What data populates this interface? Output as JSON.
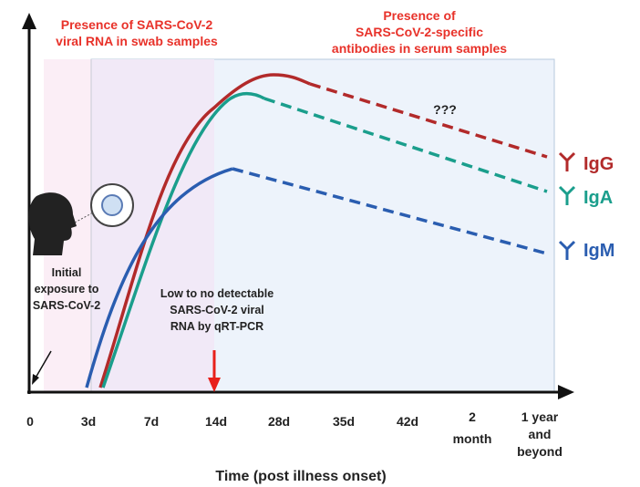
{
  "diagram": {
    "top_labels": [
      [
        "Presence of SARS-CoV-2",
        "viral RNA in swab samples"
      ],
      [
        "Presence of",
        "SARS-CoV-2-specific",
        "antibodies in serum samples"
      ]
    ],
    "unknown_label": "???",
    "exposure_label": [
      "Initial",
      "exposure to",
      "SARS-CoV-2"
    ],
    "pcr_label": [
      "Low to no detectable",
      "SARS-CoV-2 viral",
      "RNA by qRT-PCR"
    ],
    "antibodies": [
      "IgG",
      "IgA",
      "IgM"
    ],
    "x_ticks": [
      [
        "0"
      ],
      [
        "3d"
      ],
      [
        "7d"
      ],
      [
        "14d"
      ],
      [
        "28d"
      ],
      [
        "35d"
      ],
      [
        "42d"
      ],
      [
        "2",
        "month"
      ],
      [
        "1 year",
        "and",
        "beyond"
      ]
    ],
    "x_axis_title": "Time (post illness onset)"
  }
}
